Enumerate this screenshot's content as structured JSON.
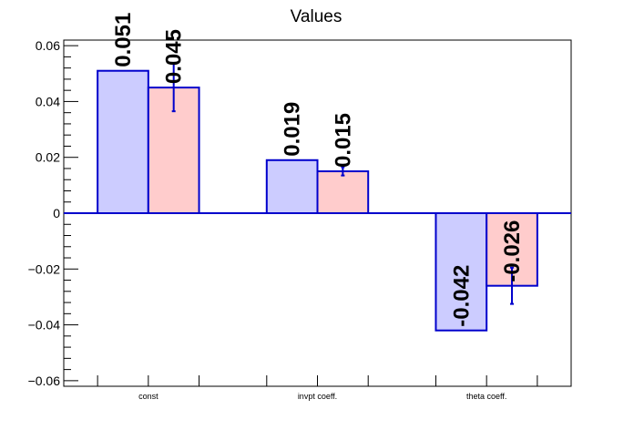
{
  "chart_data": {
    "type": "bar",
    "title": "Values",
    "categories": [
      "const",
      "invpt coeff.",
      "theta coeff."
    ],
    "series": [
      {
        "values": [
          0.051,
          0.019,
          -0.042
        ],
        "errors": [
          0,
          0,
          0
        ],
        "labels": [
          "0.051",
          "0.019",
          "-0.042"
        ],
        "color": "#ccccff"
      },
      {
        "values": [
          0.045,
          0.015,
          -0.026
        ],
        "errors": [
          0.0085,
          0.0015,
          0.0065
        ],
        "labels": [
          "0.045",
          "0.015",
          "-0.026"
        ],
        "color": "#ffcccc"
      }
    ],
    "edge_color": "#0000cc",
    "ylim": [
      -0.062,
      0.062
    ],
    "yticks": [
      -0.06,
      -0.04,
      -0.02,
      0,
      0.02,
      0.04,
      0.06
    ],
    "ytick_labels": [
      "−0.06",
      "−0.04",
      "−0.02",
      "0",
      "0.02",
      "0.04",
      "0.06"
    ],
    "xlabel": "",
    "ylabel": "",
    "grid": false,
    "legend": false
  }
}
